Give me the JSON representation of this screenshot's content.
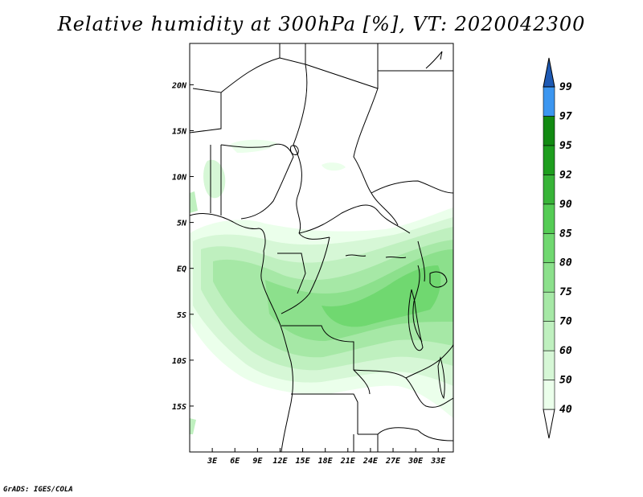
{
  "title": "Relative humidity at 300hPa [%], VT: 2020042300",
  "credit": "GrADS: IGES/COLA",
  "map": {
    "lon_range": [
      0,
      35
    ],
    "lat_range": [
      -20,
      24.5
    ],
    "lon_ticks": [
      {
        "value": 3,
        "label": "3E"
      },
      {
        "value": 6,
        "label": "6E"
      },
      {
        "value": 9,
        "label": "9E"
      },
      {
        "value": 12,
        "label": "12E"
      },
      {
        "value": 15,
        "label": "15E"
      },
      {
        "value": 18,
        "label": "18E"
      },
      {
        "value": 21,
        "label": "21E"
      },
      {
        "value": 24,
        "label": "24E"
      },
      {
        "value": 27,
        "label": "27E"
      },
      {
        "value": 30,
        "label": "30E"
      },
      {
        "value": 33,
        "label": "33E"
      }
    ],
    "lat_ticks": [
      {
        "value": 20,
        "label": "20N"
      },
      {
        "value": 15,
        "label": "15N"
      },
      {
        "value": 10,
        "label": "10N"
      },
      {
        "value": 5,
        "label": "5N"
      },
      {
        "value": 0,
        "label": "EQ"
      },
      {
        "value": -5,
        "label": "5S"
      },
      {
        "value": -10,
        "label": "10S"
      },
      {
        "value": -15,
        "label": "15S"
      }
    ]
  },
  "colorbar": {
    "levels": [
      {
        "label": "40",
        "color": "#ebffeb"
      },
      {
        "label": "50",
        "color": "#d6f7d6"
      },
      {
        "label": "60",
        "color": "#bff0bf"
      },
      {
        "label": "70",
        "color": "#a6e8a6"
      },
      {
        "label": "75",
        "color": "#8ce08c"
      },
      {
        "label": "80",
        "color": "#70d870"
      },
      {
        "label": "85",
        "color": "#55cc55"
      },
      {
        "label": "90",
        "color": "#38b438"
      },
      {
        "label": "92",
        "color": "#1e9e1e"
      },
      {
        "label": "95",
        "color": "#128a12"
      },
      {
        "label": "97",
        "color": "#3c96f0"
      },
      {
        "label": "99",
        "color": "#1e6ed2"
      }
    ],
    "bottom_color": "#ffffff",
    "top_color": "#1e5ab4"
  },
  "colors": {
    "background": "#ffffff",
    "border": "#000000",
    "land_lines": "#000000"
  }
}
